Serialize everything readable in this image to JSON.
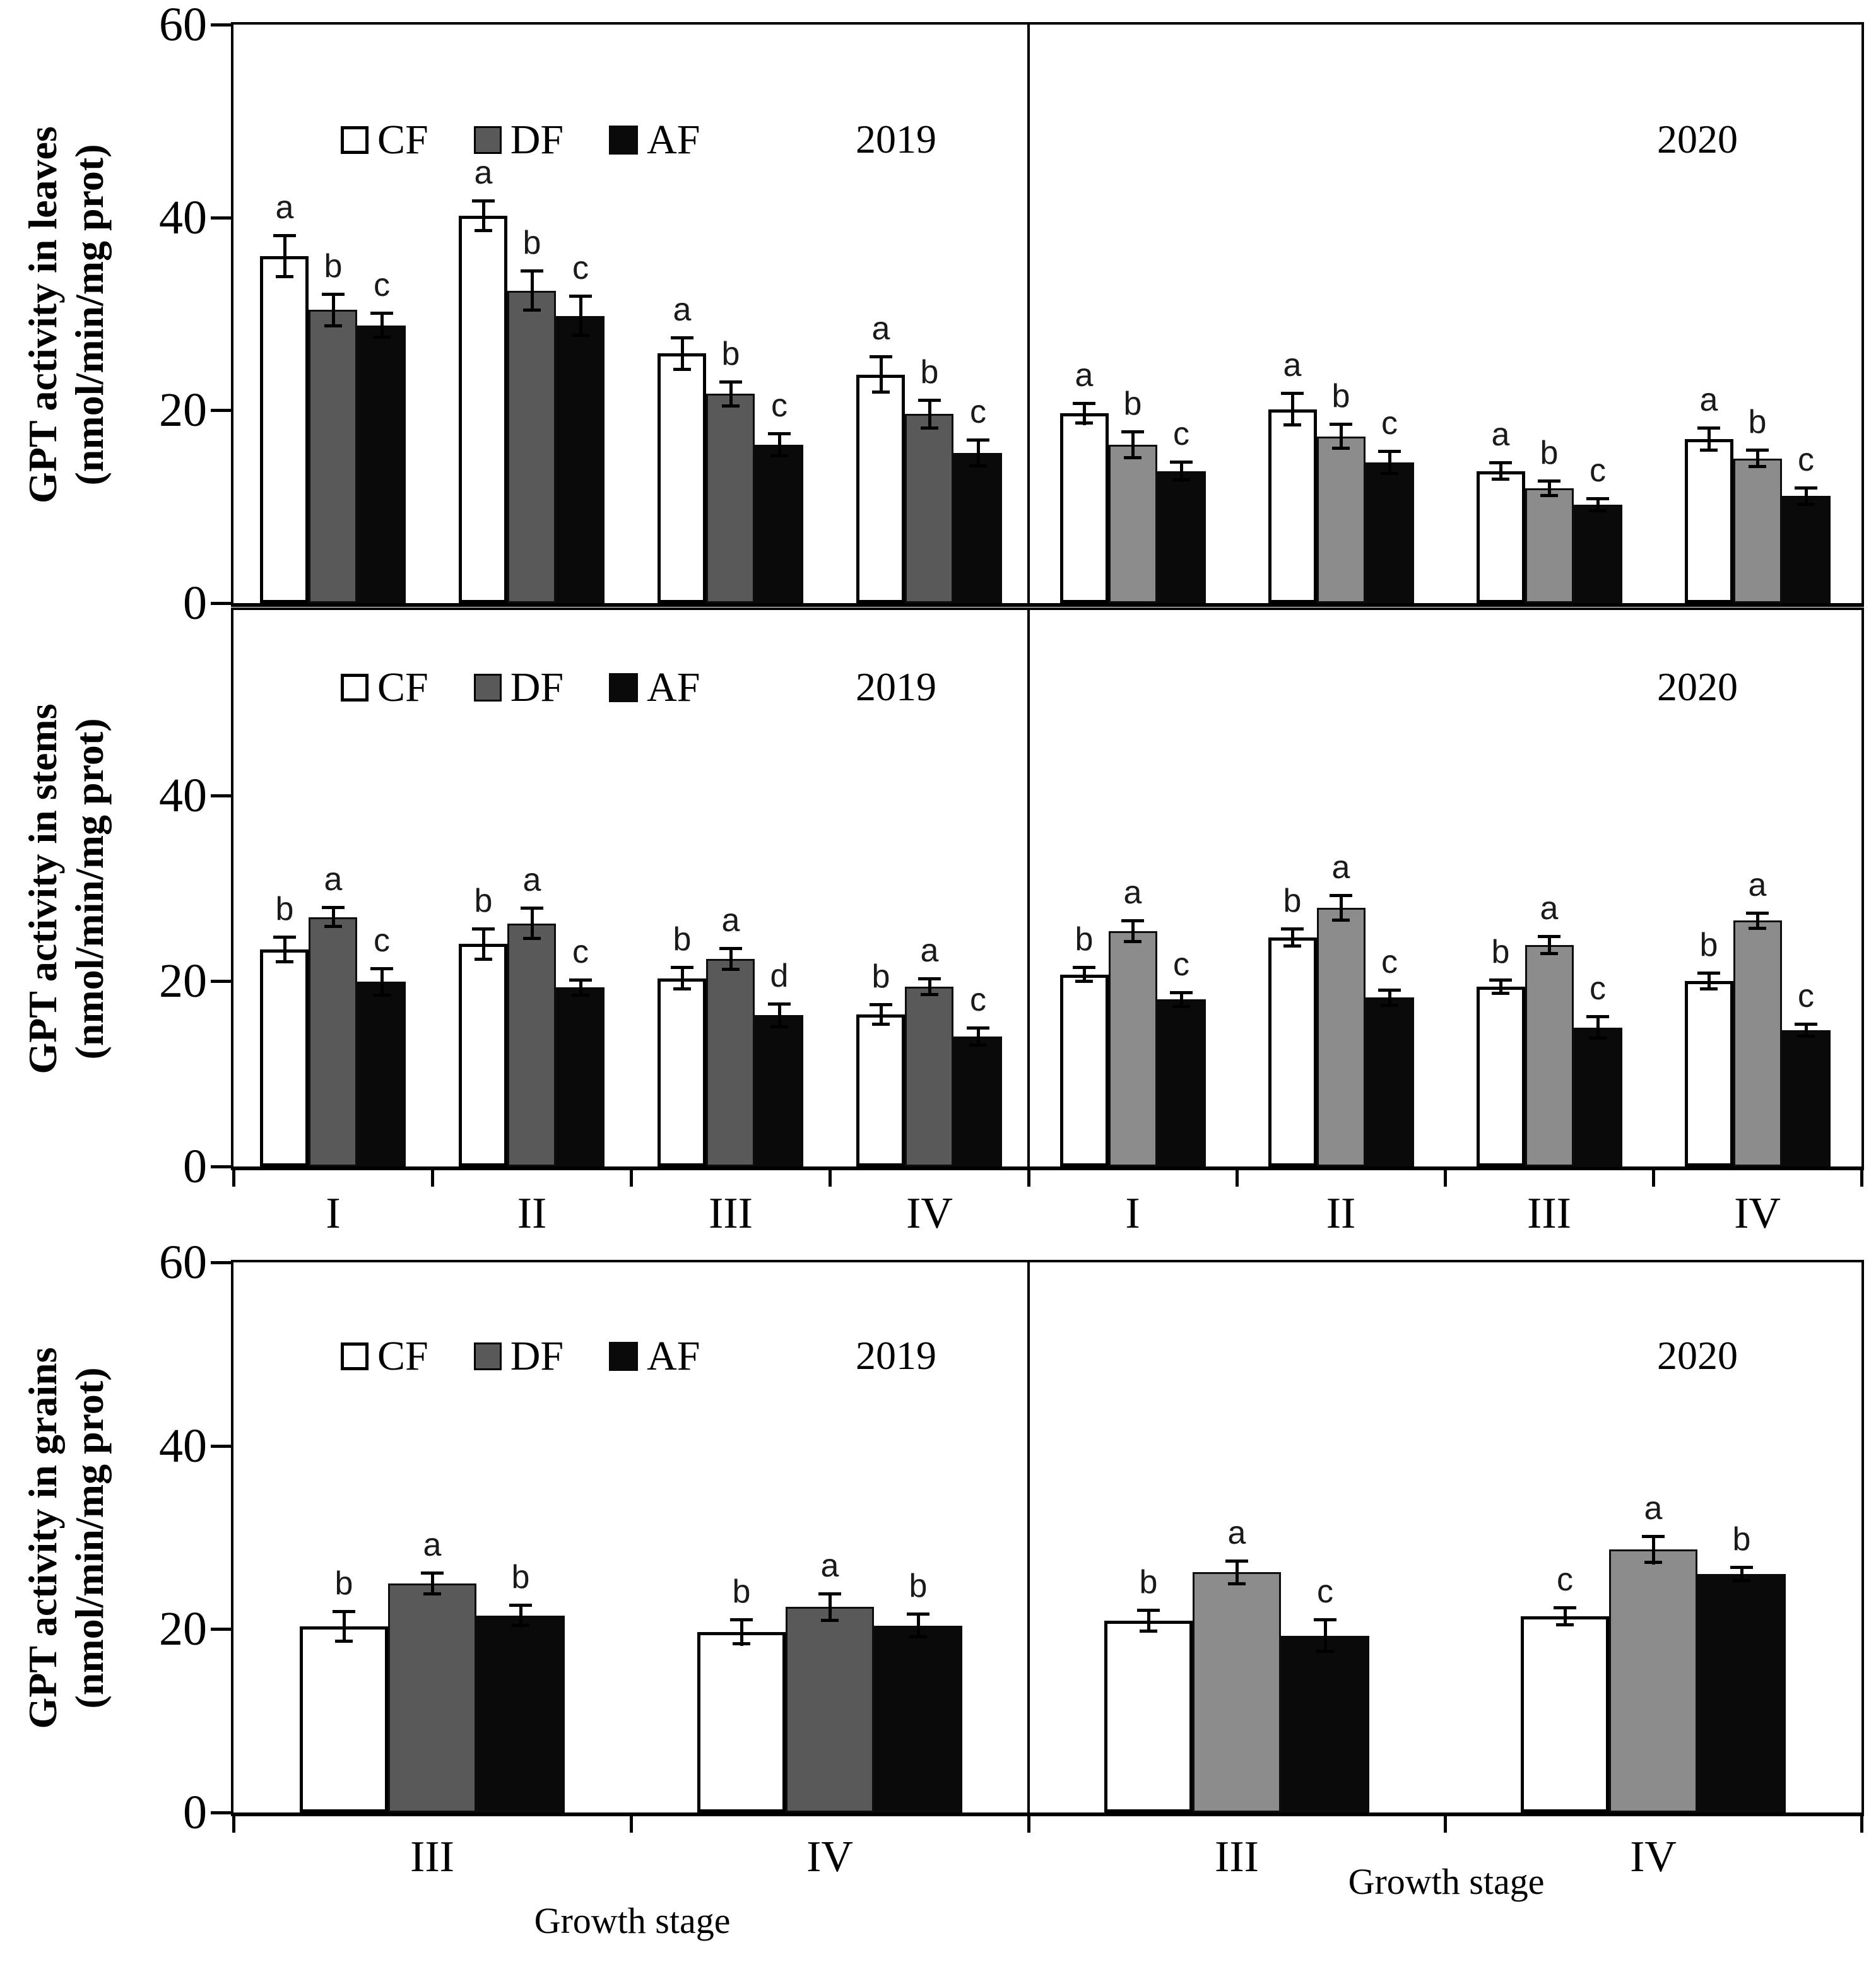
{
  "colors": {
    "background": "#ffffff",
    "axis": "#000000",
    "cf_fill": "#ffffff",
    "df_fill_2019": "#595959",
    "df_fill_2020": "#8c8c8c",
    "af_fill": "#0a0a0a",
    "letter_color": "#1a1a1a"
  },
  "legend_items": [
    "CF",
    "DF",
    "AF"
  ],
  "chart_data": [
    {
      "type": "bar",
      "tissue": "leaves",
      "ylabel": [
        "GPT activity in leaves",
        "(nmol/min/mg prot)"
      ],
      "ylim": [
        0,
        60
      ],
      "yticks": [
        0,
        20,
        40,
        60
      ],
      "show_stage_labels": false,
      "xlabel": null,
      "panels": [
        {
          "year": "2019",
          "show_legend": true,
          "categories": [
            "I",
            "II",
            "III",
            "IV"
          ],
          "series": [
            {
              "name": "CF",
              "values": [
                36.0,
                40.2,
                25.9,
                23.7
              ],
              "errors": [
                2.3,
                1.7,
                1.8,
                2.0
              ],
              "letters": [
                "a",
                "a",
                "a",
                "a"
              ]
            },
            {
              "name": "DF",
              "values": [
                30.4,
                32.4,
                21.7,
                19.6
              ],
              "errors": [
                1.8,
                2.2,
                1.4,
                1.6
              ],
              "letters": [
                "b",
                "b",
                "b",
                "b"
              ]
            },
            {
              "name": "AF",
              "values": [
                28.8,
                29.8,
                16.4,
                15.6
              ],
              "errors": [
                1.4,
                2.2,
                1.3,
                1.5
              ],
              "letters": [
                "c",
                "c",
                "c",
                "c"
              ]
            }
          ]
        },
        {
          "year": "2020",
          "show_legend": false,
          "categories": [
            "I",
            "II",
            "III",
            "IV"
          ],
          "series": [
            {
              "name": "CF",
              "values": [
                19.7,
                20.1,
                13.7,
                17.0
              ],
              "errors": [
                1.2,
                1.8,
                1.0,
                1.3
              ],
              "letters": [
                "a",
                "a",
                "a",
                "a"
              ]
            },
            {
              "name": "DF",
              "values": [
                16.4,
                17.3,
                11.9,
                15.0
              ],
              "errors": [
                1.5,
                1.4,
                0.9,
                1.0
              ],
              "letters": [
                "b",
                "b",
                "b",
                "b"
              ]
            },
            {
              "name": "AF",
              "values": [
                13.7,
                14.6,
                10.2,
                11.1
              ],
              "errors": [
                1.1,
                1.3,
                0.8,
                1.0
              ],
              "letters": [
                "c",
                "c",
                "c",
                "c"
              ]
            }
          ]
        }
      ]
    },
    {
      "type": "bar",
      "tissue": "stems",
      "ylabel": [
        "GPT activity in stems",
        "(nmol/min/mg prot)"
      ],
      "ylim": [
        0,
        60
      ],
      "yticks": [
        0,
        20,
        40
      ],
      "show_stage_labels": true,
      "xlabel": null,
      "panels": [
        {
          "year": "2019",
          "show_legend": true,
          "categories": [
            "I",
            "II",
            "III",
            "IV"
          ],
          "series": [
            {
              "name": "CF",
              "values": [
                23.4,
                24.0,
                20.3,
                16.4
              ],
              "errors": [
                1.5,
                1.8,
                1.3,
                1.2
              ],
              "letters": [
                "b",
                "b",
                "b",
                "b"
              ]
            },
            {
              "name": "DF",
              "values": [
                26.9,
                26.2,
                22.4,
                19.4
              ],
              "errors": [
                1.2,
                1.8,
                1.3,
                1.0
              ],
              "letters": [
                "a",
                "a",
                "a",
                "a"
              ]
            },
            {
              "name": "AF",
              "values": [
                19.9,
                19.3,
                16.3,
                14.0
              ],
              "errors": [
                1.6,
                1.0,
                1.4,
                1.1
              ],
              "letters": [
                "c",
                "c",
                "d",
                "c"
              ]
            }
          ]
        },
        {
          "year": "2020",
          "show_legend": false,
          "categories": [
            "I",
            "II",
            "III",
            "IV"
          ],
          "series": [
            {
              "name": "CF",
              "values": [
                20.7,
                24.7,
                19.4,
                20.0
              ],
              "errors": [
                0.9,
                1.1,
                0.9,
                1.0
              ],
              "letters": [
                "b",
                "b",
                "b",
                "b"
              ]
            },
            {
              "name": "DF",
              "values": [
                25.4,
                27.9,
                23.9,
                26.5
              ],
              "errors": [
                1.3,
                1.5,
                1.1,
                1.0
              ],
              "letters": [
                "a",
                "a",
                "a",
                "a"
              ]
            },
            {
              "name": "AF",
              "values": [
                18.0,
                18.2,
                15.0,
                14.7
              ],
              "errors": [
                0.9,
                1.0,
                1.3,
                0.8
              ],
              "letters": [
                "c",
                "c",
                "c",
                "c"
              ]
            }
          ]
        }
      ]
    },
    {
      "type": "bar",
      "tissue": "grains",
      "ylabel": [
        "GPT activity in grains",
        "(nmol/min/mg prot)"
      ],
      "ylim": [
        0,
        60
      ],
      "yticks": [
        0,
        20,
        40,
        60
      ],
      "show_stage_labels": true,
      "xlabel": "Growth stage",
      "panels": [
        {
          "year": "2019",
          "show_legend": true,
          "categories": [
            "III",
            "IV"
          ],
          "series": [
            {
              "name": "CF",
              "values": [
                20.3,
                19.7
              ],
              "errors": [
                1.8,
                1.5
              ],
              "letters": [
                "b",
                "b"
              ]
            },
            {
              "name": "DF",
              "values": [
                25.0,
                22.4
              ],
              "errors": [
                1.3,
                1.6
              ],
              "letters": [
                "a",
                "a"
              ]
            },
            {
              "name": "AF",
              "values": [
                21.5,
                20.4
              ],
              "errors": [
                1.3,
                1.4
              ],
              "letters": [
                "b",
                "b"
              ]
            }
          ]
        },
        {
          "year": "2020",
          "show_legend": false,
          "categories": [
            "III",
            "IV"
          ],
          "series": [
            {
              "name": "CF",
              "values": [
                20.9,
                21.4
              ],
              "errors": [
                1.3,
                1.1
              ],
              "letters": [
                "b",
                "c"
              ]
            },
            {
              "name": "DF",
              "values": [
                26.2,
                28.7
              ],
              "errors": [
                1.4,
                1.6
              ],
              "letters": [
                "a",
                "a"
              ]
            },
            {
              "name": "AF",
              "values": [
                19.3,
                26.0
              ],
              "errors": [
                1.9,
                0.9
              ],
              "letters": [
                "c",
                "b"
              ]
            }
          ]
        }
      ]
    }
  ]
}
